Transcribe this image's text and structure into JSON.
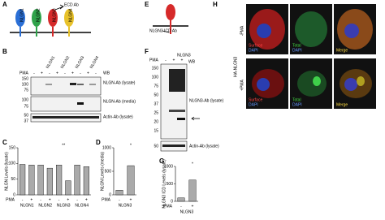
{
  "panels": {
    "A": {
      "letter": "A",
      "receptors": [
        "NLGN1",
        "NLGN2",
        "NLGN3",
        "NLGN4"
      ],
      "antibody": "ECD Ab"
    },
    "B": {
      "letter": "B",
      "lanes": [
        "NLGN1",
        "NLGN2",
        "NLGN3",
        "NLGN4"
      ],
      "row_label": "PMA",
      "signs": [
        "-",
        "+"
      ],
      "wb": "WB",
      "blots": [
        {
          "label": "NLGN-Ab (lysate)",
          "markers": [
            "150",
            "100",
            "75"
          ]
        },
        {
          "label": "NLGN-Ab (media)",
          "markers": [
            "100",
            "75"
          ]
        },
        {
          "label": "Actin-Ab (lysate)",
          "markers": [
            "50",
            "37"
          ]
        }
      ]
    },
    "E": {
      "letter": "E",
      "antibody": "NLGN3 ICD Ab"
    },
    "F": {
      "letter": "F",
      "lane": "NLGN3",
      "row_label": "PMA",
      "signs": [
        "-",
        "+"
      ],
      "wb": "WB",
      "blots": [
        {
          "label": "NLGN3-Ab (lysate)",
          "markers": [
            "150",
            "100",
            "75",
            "50",
            "37",
            "25",
            "20",
            "15"
          ]
        },
        {
          "label": "Actin-Ab (lysate)",
          "markers": [
            "50"
          ]
        }
      ]
    },
    "H": {
      "letter": "H",
      "construct": "HA-NLGN3",
      "rows": [
        "-PMA",
        "+PMA"
      ],
      "surface": "Surface",
      "dapi": "DAPI",
      "total": "Total",
      "merge": "Merge"
    }
  },
  "chart_data": [
    {
      "type": "bar",
      "letter": "C",
      "y_label": "NLGN Levels (lysate)",
      "row_label": "PMA",
      "categories": [
        "-",
        "+",
        "-",
        "+",
        "-",
        "+",
        "-",
        "+"
      ],
      "groups": [
        "NLGN1",
        "NLGN2",
        "NLGN3",
        "NLGN4"
      ],
      "values": [
        97,
        95,
        95,
        85,
        95,
        45,
        95,
        90
      ],
      "ylim": [
        0,
        150
      ],
      "yticks": [
        0,
        50,
        100,
        150
      ],
      "annotation": "**",
      "color": "#aaaaaa"
    },
    {
      "type": "bar",
      "letter": "D",
      "y_label": "NLGN Levels (media)",
      "row_label": "PMA",
      "categories": [
        "-",
        "+"
      ],
      "groups": [
        "NLGN3"
      ],
      "values": [
        100,
        620
      ],
      "ylim": [
        0,
        1000
      ],
      "yticks": [
        0,
        500,
        1000
      ],
      "annotation": "*",
      "color": "#aaaaaa"
    },
    {
      "type": "bar",
      "letter": "G",
      "y_label": "NLGN3 ICD Levels (lysate)",
      "row_label": "PMA",
      "categories": [
        "-",
        "+"
      ],
      "groups": [
        "NLGN3"
      ],
      "values": [
        100,
        610
      ],
      "ylim": [
        0,
        1000
      ],
      "yticks": [
        0,
        500,
        1000
      ],
      "annotation": "*",
      "color": "#aaaaaa"
    }
  ]
}
